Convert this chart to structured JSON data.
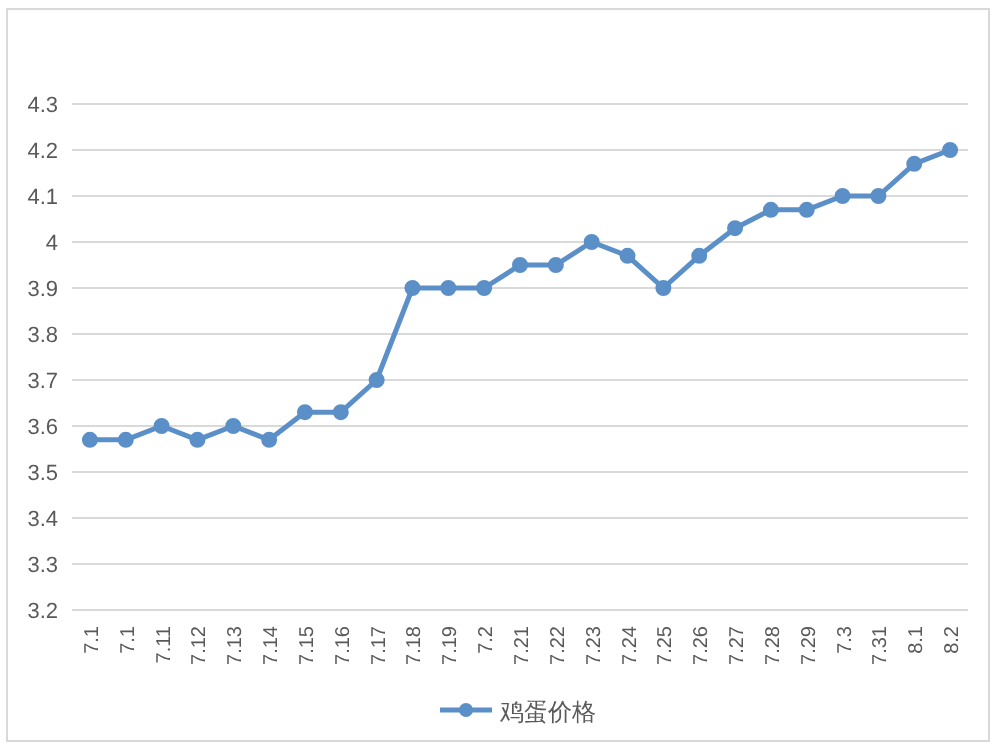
{
  "chart_data": {
    "type": "line",
    "categories": [
      "7.1",
      "7.1",
      "7.11",
      "7.12",
      "7.13",
      "7.14",
      "7.15",
      "7.16",
      "7.17",
      "7.18",
      "7.19",
      "7.2",
      "7.21",
      "7.22",
      "7.23",
      "7.24",
      "7.25",
      "7.26",
      "7.27",
      "7.28",
      "7.29",
      "7.3",
      "7.31",
      "8.1",
      "8.2"
    ],
    "series": [
      {
        "name": "鸡蛋价格",
        "color": "#5b8fc7",
        "values": [
          3.57,
          3.57,
          3.6,
          3.57,
          3.6,
          3.57,
          3.63,
          3.63,
          3.7,
          3.9,
          3.9,
          3.9,
          3.95,
          3.95,
          4.0,
          3.97,
          3.9,
          3.97,
          4.03,
          4.07,
          4.07,
          4.1,
          4.1,
          4.17,
          4.2
        ]
      }
    ],
    "ylim": [
      3.2,
      4.3
    ],
    "yticks": [
      3.2,
      3.3,
      3.4,
      3.5,
      3.6,
      3.7,
      3.8,
      3.9,
      4,
      4.1,
      4.2,
      4.3
    ],
    "grid": "y",
    "legend": "bottom",
    "marker": "circle",
    "line_style": "solid"
  }
}
